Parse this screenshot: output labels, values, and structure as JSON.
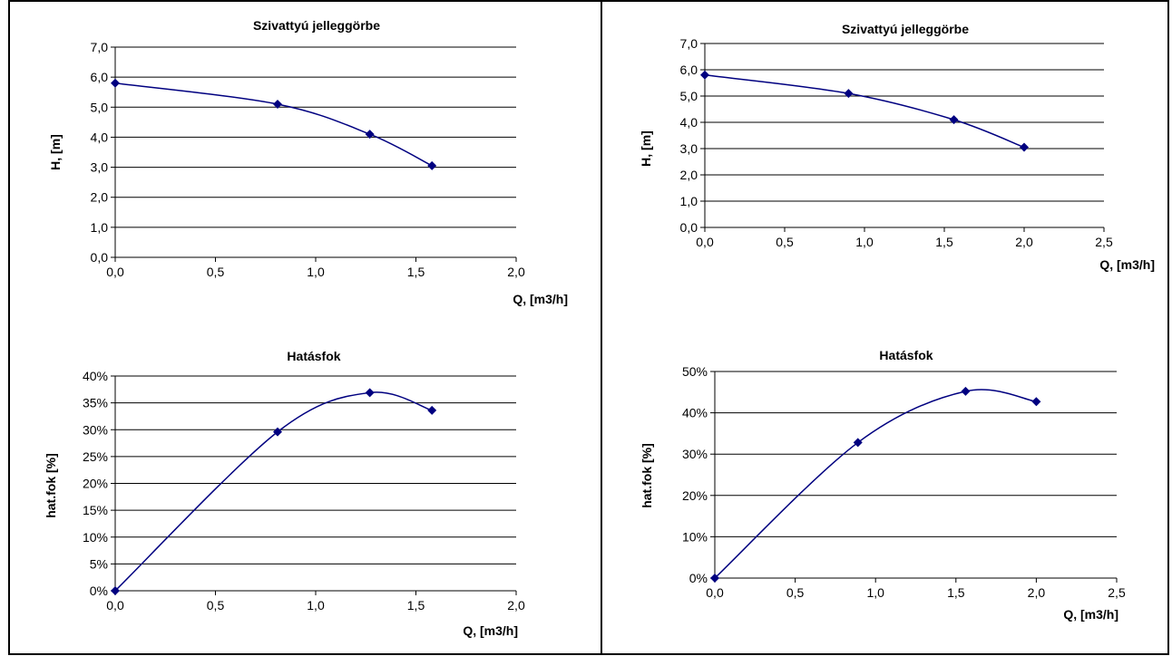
{
  "chart_data": [
    {
      "type": "line",
      "title": "Szivattyú jelleggörbe",
      "xlabel": "Q, [m3/h]",
      "ylabel": "H, [m]",
      "xlim": [
        0,
        2.0
      ],
      "ylim": [
        0,
        7.0
      ],
      "x_ticks": [
        "0,0",
        "0,5",
        "1,0",
        "1,5",
        "2,0"
      ],
      "y_ticks": [
        "0,0",
        "1,0",
        "2,0",
        "3,0",
        "4,0",
        "5,0",
        "6,0",
        "7,0"
      ],
      "grid": "horizontal",
      "series": [
        {
          "x": [
            0.0,
            0.81,
            1.27,
            1.58
          ],
          "y": [
            5.8,
            5.1,
            4.1,
            3.05
          ]
        }
      ]
    },
    {
      "type": "line",
      "title": "Szivattyú jelleggörbe",
      "xlabel": "Q, [m3/h]",
      "ylabel": "H, [m]",
      "xlim": [
        0,
        2.5
      ],
      "ylim": [
        0,
        7.0
      ],
      "x_ticks": [
        "0,0",
        "0,5",
        "1,0",
        "1,5",
        "2,0",
        "2,5"
      ],
      "y_ticks": [
        "0,0",
        "1,0",
        "2,0",
        "3,0",
        "4,0",
        "5,0",
        "6,0",
        "7,0"
      ],
      "grid": "horizontal",
      "series": [
        {
          "x": [
            0.0,
            0.9,
            1.56,
            2.0
          ],
          "y": [
            5.8,
            5.1,
            4.1,
            3.05
          ]
        }
      ]
    },
    {
      "type": "line",
      "title": "Hatásfok",
      "xlabel": "Q, [m3/h]",
      "ylabel": "hat.fok [%]",
      "xlim": [
        0,
        2.0
      ],
      "ylim": [
        0,
        40
      ],
      "x_ticks": [
        "0,0",
        "0,5",
        "1,0",
        "1,5",
        "2,0"
      ],
      "y_ticks": [
        "0%",
        "5%",
        "10%",
        "15%",
        "20%",
        "25%",
        "30%",
        "35%",
        "40%"
      ],
      "grid": "horizontal",
      "series": [
        {
          "x": [
            0.0,
            0.81,
            1.27,
            1.58
          ],
          "y": [
            0,
            29.6,
            36.9,
            33.6
          ]
        }
      ]
    },
    {
      "type": "line",
      "title": "Hatásfok",
      "xlabel": "Q, [m3/h]",
      "ylabel": "hat.fok [%]",
      "xlim": [
        0,
        2.5
      ],
      "ylim": [
        0,
        50
      ],
      "x_ticks": [
        "0,0",
        "0,5",
        "1,0",
        "1,5",
        "2,0",
        "2,5"
      ],
      "y_ticks": [
        "0%",
        "10%",
        "20%",
        "30%",
        "40%",
        "50%"
      ],
      "grid": "horizontal",
      "series": [
        {
          "x": [
            0.0,
            0.89,
            1.56,
            2.0
          ],
          "y": [
            0,
            32.8,
            45.2,
            42.7
          ]
        }
      ]
    }
  ],
  "colors": {
    "series": "#000080",
    "grid": "#000000",
    "border": "#000000"
  }
}
